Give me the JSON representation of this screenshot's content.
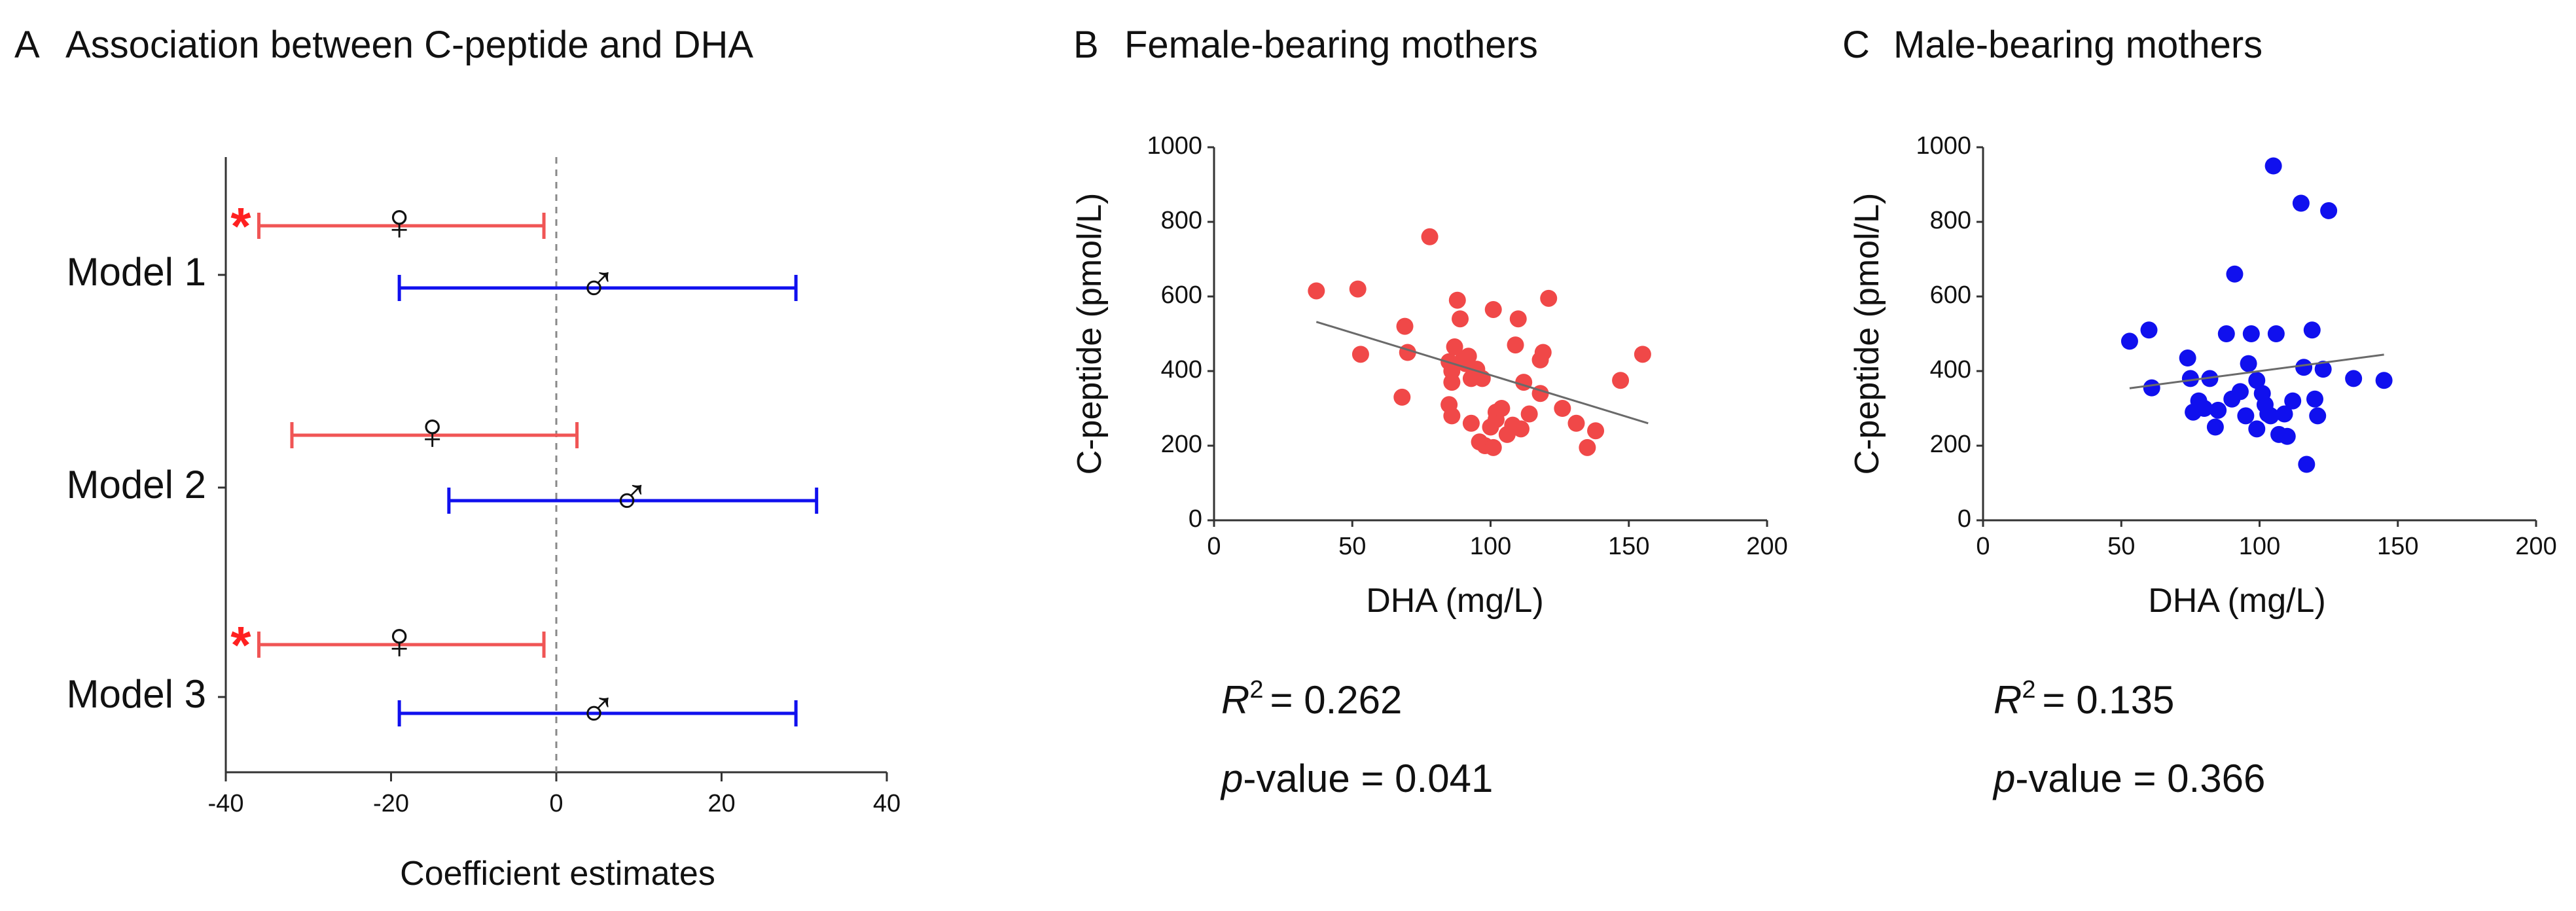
{
  "chart_data": [
    {
      "type": "forest",
      "panel_letter": "A",
      "title": "Association between C-peptide and DHA",
      "xlabel": "Coefficient estimates",
      "xlim": [
        -40,
        40
      ],
      "xticks": [
        -40,
        -20,
        0,
        20,
        40
      ],
      "reference_line": 0,
      "models": [
        {
          "label": "Model 1",
          "estimates": [
            {
              "group": "female",
              "symbol": "♀",
              "estimate": -19,
              "lower": -36,
              "upper": -1.5,
              "color": "#f05555",
              "significant": true
            },
            {
              "group": "male",
              "symbol": "♂",
              "estimate": 5,
              "lower": -19,
              "upper": 29,
              "color": "#1010ee",
              "significant": false
            }
          ]
        },
        {
          "label": "Model 2",
          "estimates": [
            {
              "group": "female",
              "symbol": "♀",
              "estimate": -15,
              "lower": -32,
              "upper": 2.5,
              "color": "#f05555",
              "significant": false
            },
            {
              "group": "male",
              "symbol": "♂",
              "estimate": 9,
              "lower": -13,
              "upper": 31.5,
              "color": "#1010ee",
              "significant": false
            }
          ]
        },
        {
          "label": "Model 3",
          "estimates": [
            {
              "group": "female",
              "symbol": "♀",
              "estimate": -19,
              "lower": -36,
              "upper": -1.5,
              "color": "#f05555",
              "significant": true
            },
            {
              "group": "male",
              "symbol": "♂",
              "estimate": 5,
              "lower": -19,
              "upper": 29,
              "color": "#1010ee",
              "significant": false
            }
          ]
        }
      ],
      "significance_marker": "*"
    },
    {
      "type": "scatter",
      "panel_letter": "B",
      "title": "Female-bearing mothers",
      "xlabel": "DHA (mg/L)",
      "ylabel": "C-peptide (pmol/L)",
      "xlim": [
        0,
        200
      ],
      "ylim": [
        0,
        1000
      ],
      "xticks": [
        0,
        50,
        100,
        150,
        200
      ],
      "yticks": [
        0,
        200,
        400,
        600,
        800,
        1000
      ],
      "color": "#f04848",
      "points": [
        [
          37,
          615
        ],
        [
          52,
          620
        ],
        [
          53,
          445
        ],
        [
          69,
          520
        ],
        [
          70,
          450
        ],
        [
          68,
          330
        ],
        [
          78,
          760
        ],
        [
          85,
          425
        ],
        [
          86,
          400
        ],
        [
          86,
          370
        ],
        [
          85,
          310
        ],
        [
          86,
          280
        ],
        [
          88,
          590
        ],
        [
          89,
          540
        ],
        [
          87,
          465
        ],
        [
          90,
          430
        ],
        [
          91,
          420
        ],
        [
          92,
          440
        ],
        [
          93,
          380
        ],
        [
          95,
          405
        ],
        [
          97,
          380
        ],
        [
          93,
          260
        ],
        [
          96,
          210
        ],
        [
          98,
          200
        ],
        [
          100,
          250
        ],
        [
          102,
          290
        ],
        [
          101,
          565
        ],
        [
          102,
          270
        ],
        [
          104,
          300
        ],
        [
          106,
          230
        ],
        [
          108,
          255
        ],
        [
          109,
          470
        ],
        [
          110,
          540
        ],
        [
          112,
          370
        ],
        [
          111,
          245
        ],
        [
          114,
          285
        ],
        [
          118,
          340
        ],
        [
          118,
          430
        ],
        [
          119,
          450
        ],
        [
          121,
          595
        ],
        [
          126,
          300
        ],
        [
          131,
          260
        ],
        [
          135,
          195
        ],
        [
          138,
          240
        ],
        [
          147,
          375
        ],
        [
          155,
          445
        ],
        [
          101,
          195
        ]
      ],
      "fit_line": {
        "x1": 37,
        "y1": 532,
        "x2": 157,
        "y2": 260
      },
      "stats": {
        "r2_symbol": "R",
        "r2_exponent": "2",
        "r2_value": "= 0.262",
        "p_prefix": "p",
        "p_label": "-value = 0.041"
      }
    },
    {
      "type": "scatter",
      "panel_letter": "C",
      "title": "Male-bearing mothers",
      "xlabel": "DHA (mg/L)",
      "ylabel": "C-peptide (pmol/L)",
      "xlim": [
        0,
        200
      ],
      "ylim": [
        0,
        1000
      ],
      "xticks": [
        0,
        50,
        100,
        150,
        200
      ],
      "yticks": [
        0,
        200,
        400,
        600,
        800,
        1000
      ],
      "color": "#1010ee",
      "points": [
        [
          53,
          480
        ],
        [
          60,
          510
        ],
        [
          61,
          355
        ],
        [
          74,
          435
        ],
        [
          75,
          380
        ],
        [
          76,
          290
        ],
        [
          78,
          320
        ],
        [
          80,
          300
        ],
        [
          82,
          380
        ],
        [
          84,
          250
        ],
        [
          85,
          295
        ],
        [
          88,
          500
        ],
        [
          90,
          325
        ],
        [
          91,
          660
        ],
        [
          93,
          345
        ],
        [
          95,
          280
        ],
        [
          96,
          420
        ],
        [
          97,
          500
        ],
        [
          99,
          375
        ],
        [
          99,
          245
        ],
        [
          101,
          340
        ],
        [
          102,
          310
        ],
        [
          103,
          285
        ],
        [
          104,
          280
        ],
        [
          105,
          950
        ],
        [
          106,
          500
        ],
        [
          107,
          230
        ],
        [
          109,
          285
        ],
        [
          110,
          225
        ],
        [
          112,
          320
        ],
        [
          115,
          850
        ],
        [
          116,
          410
        ],
        [
          117,
          150
        ],
        [
          119,
          510
        ],
        [
          120,
          325
        ],
        [
          121,
          280
        ],
        [
          123,
          405
        ],
        [
          125,
          830
        ],
        [
          134,
          380
        ],
        [
          145,
          375
        ]
      ],
      "fit_line": {
        "x1": 53,
        "y1": 354,
        "x2": 145,
        "y2": 444
      },
      "stats": {
        "r2_symbol": "R",
        "r2_exponent": "2",
        "r2_value": "= 0.135",
        "p_prefix": "p",
        "p_label": "-value = 0.366"
      }
    }
  ]
}
